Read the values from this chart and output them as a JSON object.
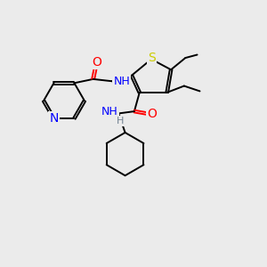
{
  "background_color": "#ebebeb",
  "atom_colors": {
    "C": "#000000",
    "N": "#0000ff",
    "O": "#ff0000",
    "S": "#cccc00",
    "H": "#708090"
  },
  "font_size": 9,
  "figsize": [
    3.0,
    3.0
  ],
  "dpi": 100,
  "lw": 1.4
}
